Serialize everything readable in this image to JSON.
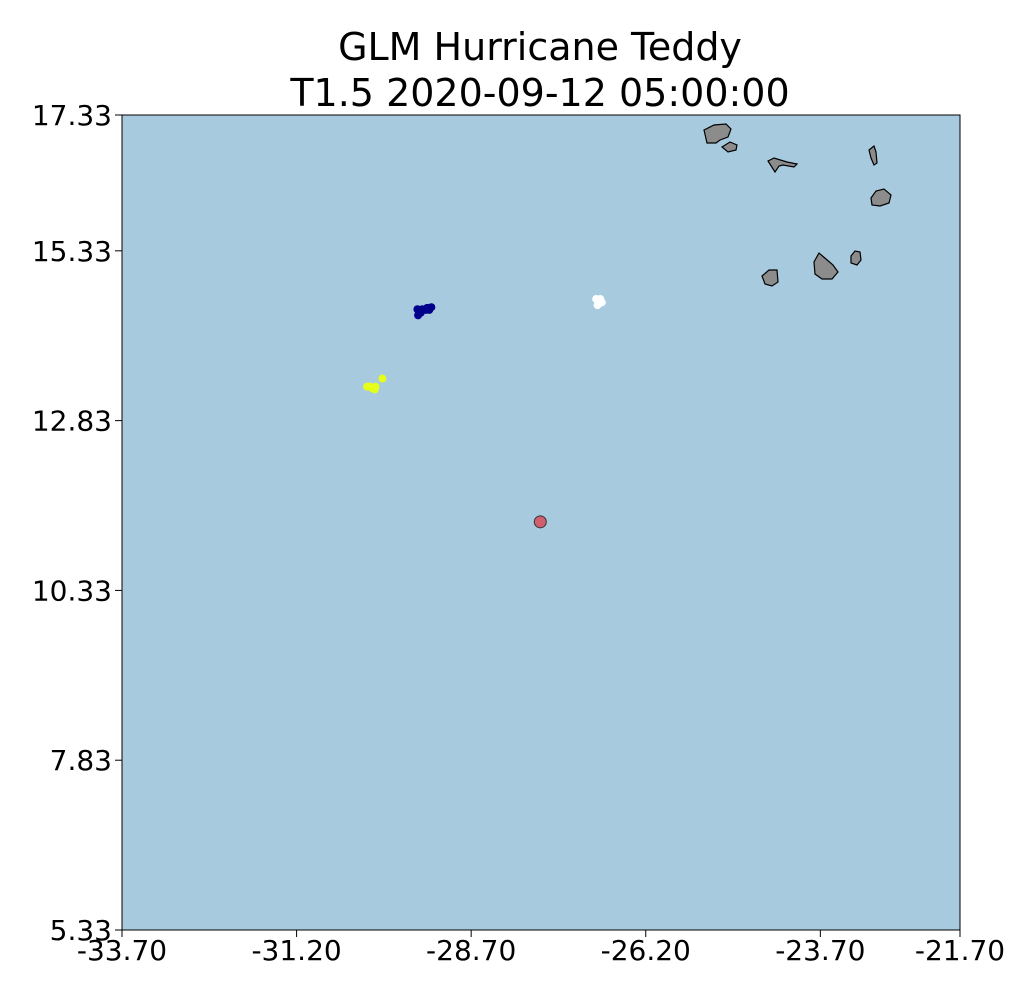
{
  "chart_data": {
    "type": "scatter",
    "title_line1": "GLM Hurricane Teddy",
    "title_line2": "T1.5 2020-09-12 05:00:00",
    "xlabel": "",
    "ylabel": "",
    "xlim": [
      -33.7,
      -21.7
    ],
    "ylim": [
      5.33,
      17.33
    ],
    "x_ticks": [
      -33.7,
      -31.2,
      -28.7,
      -26.2,
      -23.7,
      -21.7
    ],
    "x_tick_labels": [
      "-33.70",
      "-31.20",
      "-28.70",
      "-26.20",
      "-23.70",
      "-21.70"
    ],
    "y_ticks": [
      5.33,
      7.83,
      10.33,
      12.83,
      15.33,
      17.33
    ],
    "y_tick_labels": [
      "5.33",
      "7.83",
      "10.33",
      "12.83",
      "15.33",
      "17.33"
    ],
    "grid": false,
    "colors": {
      "ocean": "#a7cadf",
      "land": "#8c8c8c",
      "center": "#d06070",
      "cluster_navy": "#00008b",
      "cluster_yellow": "#e5ff1a",
      "cluster_white": "#ffffff"
    },
    "center_point": {
      "x": -27.71,
      "y": 11.34
    },
    "series": [
      {
        "color_key": "cluster_navy",
        "points": [
          [
            -29.47,
            14.47
          ],
          [
            -29.4,
            14.47
          ],
          [
            -29.42,
            14.42
          ],
          [
            -29.46,
            14.38
          ],
          [
            -29.33,
            14.49
          ],
          [
            -29.29,
            14.49
          ],
          [
            -29.3,
            14.46
          ],
          [
            -29.35,
            14.46
          ],
          [
            -29.44,
            14.44
          ],
          [
            -29.27,
            14.5
          ]
        ]
      },
      {
        "color_key": "cluster_yellow",
        "points": [
          [
            -30.19,
            13.33
          ],
          [
            -30.15,
            13.33
          ],
          [
            -30.08,
            13.29
          ],
          [
            -30.12,
            13.31
          ],
          [
            -30.07,
            13.33
          ],
          [
            -29.97,
            13.45
          ]
        ]
      },
      {
        "color_key": "cluster_white",
        "points": [
          [
            -26.91,
            14.62
          ],
          [
            -26.85,
            14.62
          ],
          [
            -26.87,
            14.58
          ],
          [
            -26.89,
            14.53
          ],
          [
            -26.83,
            14.57
          ]
        ]
      }
    ]
  }
}
